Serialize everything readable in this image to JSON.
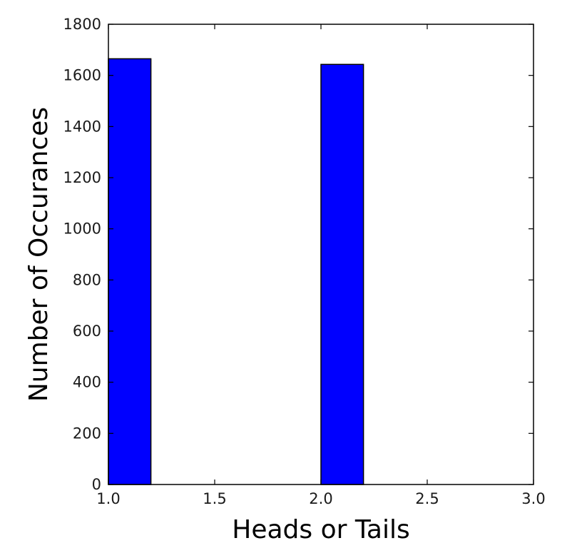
{
  "chart_data": {
    "type": "bar",
    "xlabel": "Heads or Tails",
    "ylabel": "Number of Occurances",
    "xlim": [
      1.0,
      3.0
    ],
    "ylim": [
      0,
      1800
    ],
    "xticks": [
      1.0,
      1.5,
      2.0,
      2.5,
      3.0
    ],
    "xtick_labels": [
      "1.0",
      "1.5",
      "2.0",
      "2.5",
      "3.0"
    ],
    "yticks": [
      0,
      200,
      400,
      600,
      800,
      1000,
      1200,
      1400,
      1600,
      1800
    ],
    "ytick_labels": [
      "0",
      "200",
      "400",
      "600",
      "800",
      "1000",
      "1200",
      "1400",
      "1600",
      "1800"
    ],
    "bins": [
      {
        "x_start": 1.0,
        "x_end": 1.2,
        "value": 1665
      },
      {
        "x_start": 2.0,
        "x_end": 2.2,
        "value": 1643
      }
    ],
    "bar_color": "#0000ff",
    "bar_edge_color": "#000000",
    "grid": false
  }
}
